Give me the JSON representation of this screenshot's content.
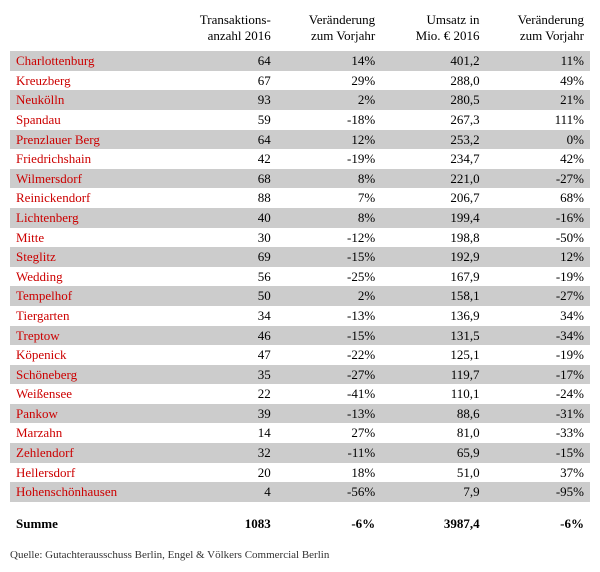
{
  "header": {
    "col0": "",
    "col1a": "Transaktions-",
    "col1b": "anzahl 2016",
    "col2a": "Veränderung",
    "col2b": "zum Vorjahr",
    "col3a": "Umsatz in",
    "col3b": "Mio. € 2016",
    "col4a": "Veränderung",
    "col4b": "zum Vorjahr"
  },
  "rows": [
    {
      "d": "Charlottenburg",
      "t": "64",
      "v1": "14%",
      "u": "401,2",
      "v2": "11%",
      "s": true
    },
    {
      "d": "Kreuzberg",
      "t": "67",
      "v1": "29%",
      "u": "288,0",
      "v2": "49%",
      "s": false
    },
    {
      "d": "Neukölln",
      "t": "93",
      "v1": "2%",
      "u": "280,5",
      "v2": "21%",
      "s": true
    },
    {
      "d": "Spandau",
      "t": "59",
      "v1": "-18%",
      "u": "267,3",
      "v2": "111%",
      "s": false
    },
    {
      "d": "Prenzlauer Berg",
      "t": "64",
      "v1": "12%",
      "u": "253,2",
      "v2": "0%",
      "s": true
    },
    {
      "d": "Friedrichshain",
      "t": "42",
      "v1": "-19%",
      "u": "234,7",
      "v2": "42%",
      "s": false
    },
    {
      "d": "Wilmersdorf",
      "t": "68",
      "v1": "8%",
      "u": "221,0",
      "v2": "-27%",
      "s": true
    },
    {
      "d": "Reinickendorf",
      "t": "88",
      "v1": "7%",
      "u": "206,7",
      "v2": "68%",
      "s": false
    },
    {
      "d": "Lichtenberg",
      "t": "40",
      "v1": "8%",
      "u": "199,4",
      "v2": "-16%",
      "s": true
    },
    {
      "d": "Mitte",
      "t": "30",
      "v1": "-12%",
      "u": "198,8",
      "v2": "-50%",
      "s": false
    },
    {
      "d": "Steglitz",
      "t": "69",
      "v1": "-15%",
      "u": "192,9",
      "v2": "12%",
      "s": true
    },
    {
      "d": "Wedding",
      "t": "56",
      "v1": "-25%",
      "u": "167,9",
      "v2": "-19%",
      "s": false
    },
    {
      "d": "Tempelhof",
      "t": "50",
      "v1": "2%",
      "u": "158,1",
      "v2": "-27%",
      "s": true
    },
    {
      "d": "Tiergarten",
      "t": "34",
      "v1": "-13%",
      "u": "136,9",
      "v2": "34%",
      "s": false
    },
    {
      "d": "Treptow",
      "t": "46",
      "v1": "-15%",
      "u": "131,5",
      "v2": "-34%",
      "s": true
    },
    {
      "d": "Köpenick",
      "t": "47",
      "v1": "-22%",
      "u": "125,1",
      "v2": "-19%",
      "s": false
    },
    {
      "d": "Schöneberg",
      "t": "35",
      "v1": "-27%",
      "u": "119,7",
      "v2": "-17%",
      "s": true
    },
    {
      "d": "Weißensee",
      "t": "22",
      "v1": "-41%",
      "u": "110,1",
      "v2": "-24%",
      "s": false
    },
    {
      "d": "Pankow",
      "t": "39",
      "v1": "-13%",
      "u": "88,6",
      "v2": "-31%",
      "s": true
    },
    {
      "d": "Marzahn",
      "t": "14",
      "v1": "27%",
      "u": "81,0",
      "v2": "-33%",
      "s": false
    },
    {
      "d": "Zehlendorf",
      "t": "32",
      "v1": "-11%",
      "u": "65,9",
      "v2": "-15%",
      "s": true
    },
    {
      "d": "Hellersdorf",
      "t": "20",
      "v1": "18%",
      "u": "51,0",
      "v2": "37%",
      "s": false
    },
    {
      "d": "Hohenschönhausen",
      "t": "4",
      "v1": "-56%",
      "u": "7,9",
      "v2": "-95%",
      "s": true
    }
  ],
  "sum": {
    "label": "Summe",
    "t": "1083",
    "v1": "-6%",
    "u": "3987,4",
    "v2": "-6%"
  },
  "source": "Quelle: Gutachterausschuss Berlin, Engel & Völkers Commercial Berlin",
  "colors": {
    "district_text": "#cc0000",
    "shade": "#cccccc",
    "bg": "#ffffff"
  }
}
